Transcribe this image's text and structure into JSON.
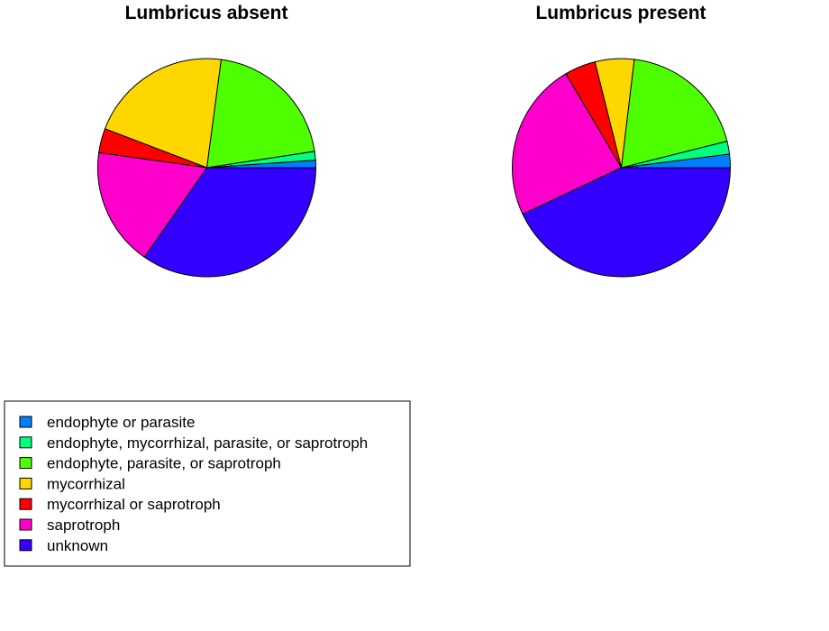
{
  "chart_data": [
    {
      "type": "pie",
      "title": "Lumbricus absent",
      "slices": [
        {
          "label": "endophyte or parasite",
          "value": 1.1
        },
        {
          "label": "endophyte, mycorrhizal, parasite, or saprotroph",
          "value": 1.3
        },
        {
          "label": "endophyte, parasite, or saprotroph",
          "value": 20.5
        },
        {
          "label": "mycorrhizal",
          "value": 21.3
        },
        {
          "label": "mycorrhizal or saprotroph",
          "value": 3.6
        },
        {
          "label": "saprotroph",
          "value": 17.5
        },
        {
          "label": "unknown",
          "value": 34.7
        }
      ]
    },
    {
      "type": "pie",
      "title": "Lumbricus present",
      "slices": [
        {
          "label": "endophyte or parasite",
          "value": 2.0
        },
        {
          "label": "endophyte, mycorrhizal, parasite, or saprotroph",
          "value": 1.9
        },
        {
          "label": "endophyte, parasite, or saprotroph",
          "value": 19.2
        },
        {
          "label": "mycorrhizal",
          "value": 5.8
        },
        {
          "label": "mycorrhizal or saprotroph",
          "value": 4.6
        },
        {
          "label": "saprotroph",
          "value": 23.5
        },
        {
          "label": "unknown",
          "value": 43.0
        }
      ]
    }
  ],
  "legend": {
    "placement": "bottom-left",
    "items": [
      {
        "label": "endophyte or parasite",
        "color": "#0080ff"
      },
      {
        "label": "endophyte, mycorrhizal, parasite, or saprotroph",
        "color": "#00ff80"
      },
      {
        "label": "endophyte, parasite, or saprotroph",
        "color": "#4dff00"
      },
      {
        "label": "mycorrhizal",
        "color": "#ffd700"
      },
      {
        "label": "mycorrhizal or saprotroph",
        "color": "#ff0000"
      },
      {
        "label": "saprotroph",
        "color": "#ff00cc"
      },
      {
        "label": "unknown",
        "color": "#3300ff"
      }
    ]
  }
}
